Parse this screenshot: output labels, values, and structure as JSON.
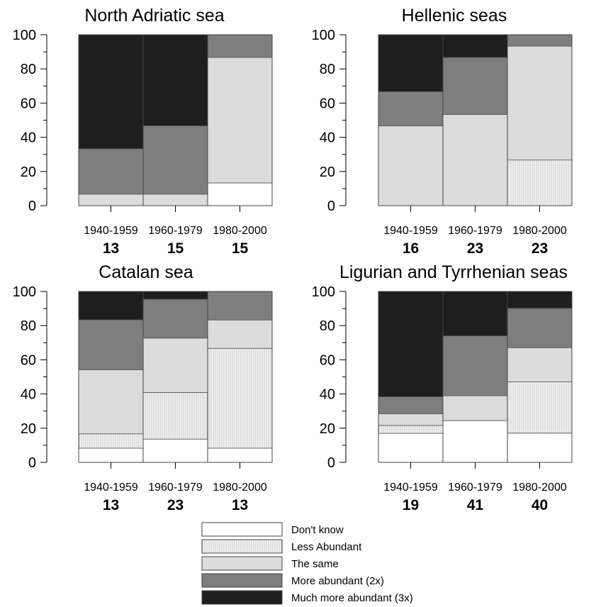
{
  "legend": {
    "placement": "bottom-center",
    "items": [
      {
        "key": "dont_know",
        "label": "Don't know",
        "color": "#ffffff",
        "pattern": "none"
      },
      {
        "key": "less",
        "label": "Less Abundant",
        "color": "#f2f2f2",
        "pattern": "vertical-hatch"
      },
      {
        "key": "same",
        "label": "The same",
        "color": "#dcdcdc",
        "pattern": "none"
      },
      {
        "key": "more2",
        "label": "More abundant (2x)",
        "color": "#7e7e7e",
        "pattern": "none"
      },
      {
        "key": "much3",
        "label": "Much more abundant (3x)",
        "color": "#1e1e1e",
        "pattern": "none"
      }
    ]
  },
  "chart_data": [
    {
      "type": "bar",
      "stacked": true,
      "title": "North Adriatic sea",
      "categories": [
        "1940-1959",
        "1960-1979",
        "1980-2000"
      ],
      "sample_sizes": [
        "13",
        "15",
        "15"
      ],
      "ylim": [
        0,
        100
      ],
      "yticks": [
        "0",
        "20",
        "40",
        "60",
        "80",
        "100"
      ],
      "series": [
        {
          "name": "Don't know",
          "values": [
            0,
            0,
            13.3
          ]
        },
        {
          "name": "Less Abundant",
          "values": [
            0,
            0,
            0
          ]
        },
        {
          "name": "The same",
          "values": [
            6.7,
            6.7,
            73.4
          ]
        },
        {
          "name": "More abundant (2x)",
          "values": [
            26.6,
            40.0,
            13.3
          ]
        },
        {
          "name": "Much more abundant (3x)",
          "values": [
            66.7,
            53.3,
            0
          ]
        }
      ]
    },
    {
      "type": "bar",
      "stacked": true,
      "title": "Hellenic seas",
      "categories": [
        "1940-1959",
        "1960-1979",
        "1980-2000"
      ],
      "sample_sizes": [
        "16",
        "23",
        "23"
      ],
      "ylim": [
        0,
        100
      ],
      "yticks": [
        "0",
        "20",
        "40",
        "60",
        "80",
        "100"
      ],
      "series": [
        {
          "name": "Don't know",
          "values": [
            0,
            0,
            0
          ]
        },
        {
          "name": "Less Abundant",
          "values": [
            0,
            0,
            26.7
          ]
        },
        {
          "name": "The same",
          "values": [
            46.7,
            53.3,
            66.6
          ]
        },
        {
          "name": "More abundant (2x)",
          "values": [
            20.0,
            33.4,
            6.7
          ]
        },
        {
          "name": "Much more abundant (3x)",
          "values": [
            33.3,
            13.3,
            0
          ]
        }
      ]
    },
    {
      "type": "bar",
      "stacked": true,
      "title": "Catalan sea",
      "categories": [
        "1940-1959",
        "1960-1979",
        "1980-2000"
      ],
      "sample_sizes": [
        "13",
        "23",
        "13"
      ],
      "ylim": [
        0,
        100
      ],
      "yticks": [
        "0",
        "20",
        "40",
        "60",
        "80",
        "100"
      ],
      "series": [
        {
          "name": "Don't know",
          "values": [
            8.3,
            13.6,
            8.3
          ]
        },
        {
          "name": "Less Abundant",
          "values": [
            8.4,
            27.3,
            58.4
          ]
        },
        {
          "name": "The same",
          "values": [
            37.5,
            31.8,
            16.6
          ]
        },
        {
          "name": "More abundant (2x)",
          "values": [
            29.2,
            22.7,
            16.7
          ]
        },
        {
          "name": "Much more abundant (3x)",
          "values": [
            16.6,
            4.6,
            0
          ]
        }
      ]
    },
    {
      "type": "bar",
      "stacked": true,
      "title": "Ligurian and Tyrrhenian seas",
      "categories": [
        "1940-1959",
        "1960-1979",
        "1980-2000"
      ],
      "sample_sizes": [
        "19",
        "41",
        "40"
      ],
      "ylim": [
        0,
        100
      ],
      "yticks": [
        "0",
        "20",
        "40",
        "60",
        "80",
        "100"
      ],
      "series": [
        {
          "name": "Don't know",
          "values": [
            17.0,
            24.4,
            17.1
          ]
        },
        {
          "name": "Less Abundant",
          "values": [
            4.6,
            0,
            30.0
          ]
        },
        {
          "name": "The same",
          "values": [
            6.8,
            14.6,
            20.0
          ]
        },
        {
          "name": "More abundant (2x)",
          "values": [
            10.0,
            35.0,
            23.0
          ]
        },
        {
          "name": "Much more abundant (3x)",
          "values": [
            61.6,
            26.0,
            9.9
          ]
        }
      ]
    }
  ]
}
